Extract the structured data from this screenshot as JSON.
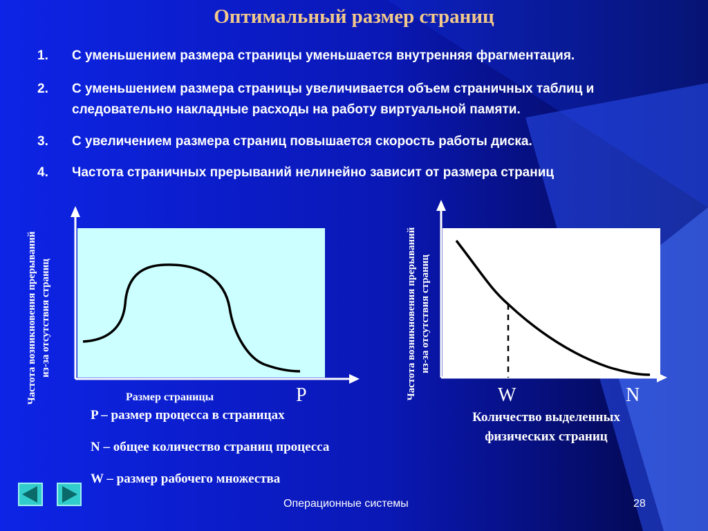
{
  "slide": {
    "title": "Оптимальный размер страниц",
    "items": [
      {
        "num": "1.",
        "text": "С уменьшением размера страницы уменьшается внутренняя фрагментация."
      },
      {
        "num": "2.",
        "text": "С уменьшением размера страницы увеличивается объем страничных таблиц и следовательно накладные расходы на работу виртуальной памяти."
      },
      {
        "num": "3.",
        "text": "С увеличением размера страниц повышается скорость работы диска."
      },
      {
        "num": "4.",
        "text": "Частота страничных прерываний нелинейно зависит от размера страниц"
      }
    ],
    "left_chart": {
      "ylabel_line1": "Частота возникновения прерываний",
      "ylabel_line2": "из-за отсутствия страниц",
      "xlabel": "Размер страницы",
      "x_letter": "P"
    },
    "right_chart": {
      "ylabel_line1": "Частота возникновения прерываний",
      "ylabel_line2": "из-за отсутствия страниц",
      "xlabel_line1": "Количество выделенных",
      "xlabel_line2": "физических страниц",
      "w_letter": "W",
      "n_letter": "N"
    },
    "legend": {
      "p": "P – размер процесса в страницах",
      "n": "N – общее количество страниц процесса",
      "w": "W – размер рабочего множества"
    },
    "footer": "Операционные системы",
    "page_number": "28",
    "colors": {
      "title": "#f2c98a",
      "left_plot_bg": "#ccffff",
      "right_plot_bg": "#ffffff",
      "nav_button": "#33cccc"
    },
    "icons": {
      "prev": "left-arrow-icon",
      "next": "right-arrow-icon"
    }
  }
}
